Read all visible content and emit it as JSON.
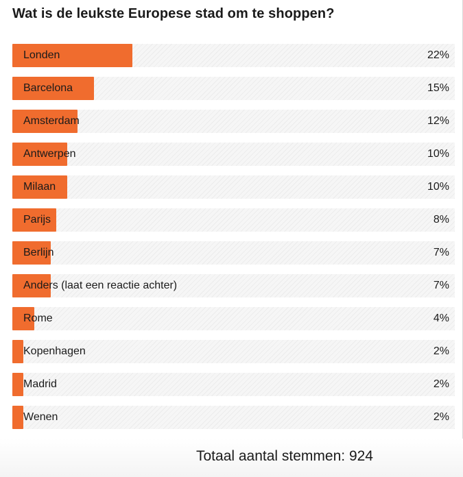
{
  "poll": {
    "question": "Wat is de leukste Europese stad om te shoppen?",
    "options": [
      {
        "label": "Londen",
        "percent_text": "22%",
        "percent": 22
      },
      {
        "label": "Barcelona",
        "percent_text": "15%",
        "percent": 15
      },
      {
        "label": "Amsterdam",
        "percent_text": "12%",
        "percent": 12
      },
      {
        "label": "Antwerpen",
        "percent_text": "10%",
        "percent": 10
      },
      {
        "label": "Milaan",
        "percent_text": "10%",
        "percent": 10
      },
      {
        "label": "Parijs",
        "percent_text": "8%",
        "percent": 8
      },
      {
        "label": "Berlijn",
        "percent_text": "7%",
        "percent": 7
      },
      {
        "label": "Anders (laat een reactie achter)",
        "percent_text": "7%",
        "percent": 7
      },
      {
        "label": "Rome",
        "percent_text": "4%",
        "percent": 4
      },
      {
        "label": "Kopenhagen",
        "percent_text": "2%",
        "percent": 2
      },
      {
        "label": "Madrid",
        "percent_text": "2%",
        "percent": 2
      },
      {
        "label": "Wenen",
        "percent_text": "2%",
        "percent": 2
      }
    ],
    "total_text": "Totaal aantal stemmen: 924"
  },
  "colors": {
    "bar": "#f06c2e",
    "track": "#f6f6f6",
    "stripe": "#ececec",
    "text": "#1a1a1a"
  }
}
